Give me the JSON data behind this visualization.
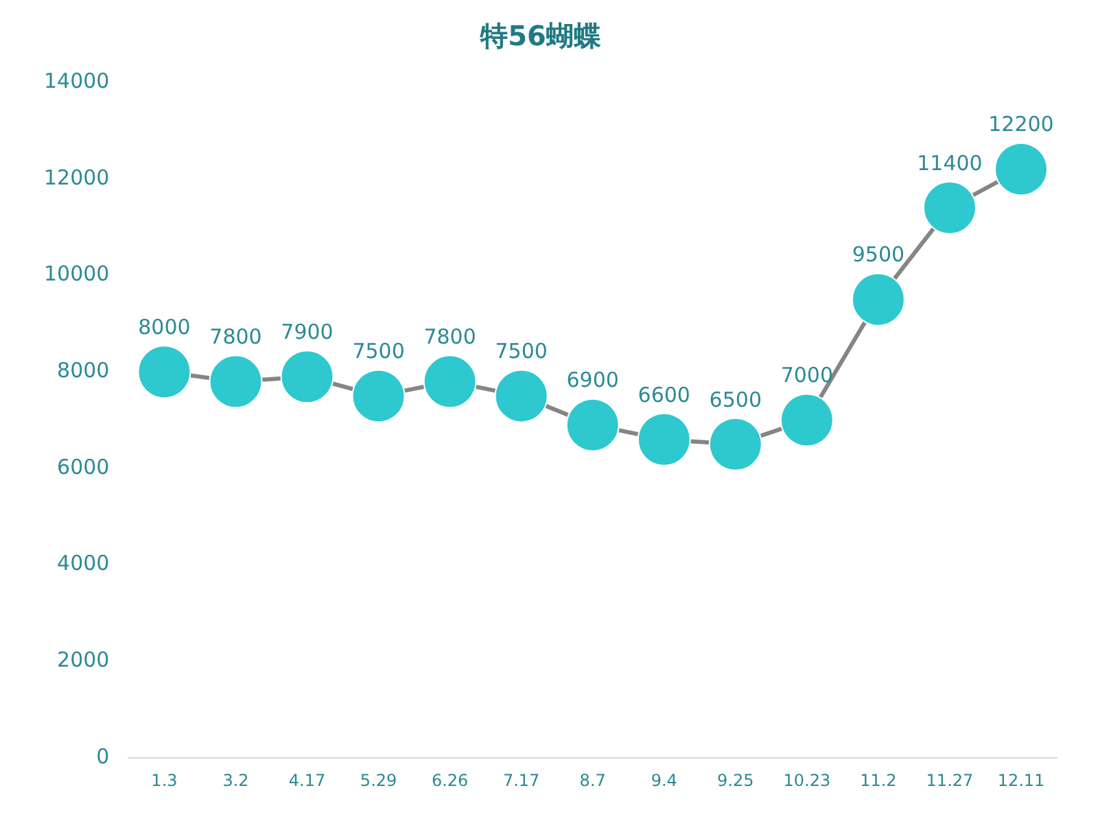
{
  "chart_data": {
    "type": "line",
    "title": "特56蝴蝶",
    "categories": [
      "1.3",
      "3.2",
      "4.17",
      "5.29",
      "6.26",
      "7.17",
      "8.7",
      "9.4",
      "9.25",
      "10.23",
      "11.2",
      "11.27",
      "12.11"
    ],
    "series": [
      {
        "color": "#2ec8cf",
        "values": [
          8000,
          7800,
          7900,
          7500,
          7800,
          7500,
          6900,
          6600,
          6500,
          7000,
          9500,
          11400,
          12200
        ]
      }
    ],
    "ylim": [
      0,
      14000
    ],
    "yticks": [
      0,
      2000,
      4000,
      6000,
      8000,
      10000,
      12000,
      14000
    ],
    "data_labels": true,
    "marker": "circle",
    "line_style": "solid"
  }
}
